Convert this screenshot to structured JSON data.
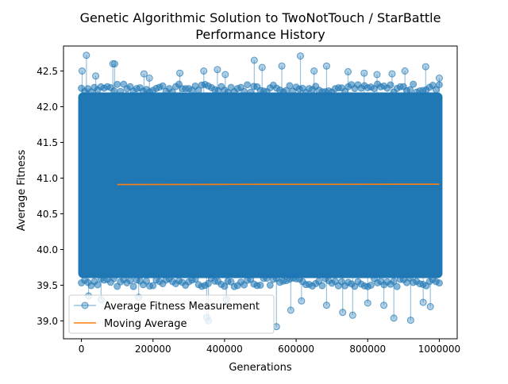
{
  "chart_data": {
    "type": "scatter",
    "title": [
      "Genetic Algorithmic Solution to TwoNotTouch / StarBattle",
      "Performance History"
    ],
    "xlabel": "Generations",
    "ylabel": "Average Fitness",
    "xlim": [
      -50000,
      1050000
    ],
    "ylim": [
      38.75,
      42.85
    ],
    "x_ticks": [
      0,
      200000,
      400000,
      600000,
      800000,
      1000000
    ],
    "x_tick_labels": [
      "0",
      "200000",
      "400000",
      "600000",
      "800000",
      "1000000"
    ],
    "y_ticks": [
      39.0,
      39.5,
      40.0,
      40.5,
      41.0,
      41.5,
      42.0,
      42.5
    ],
    "y_tick_labels": [
      "39.0",
      "39.5",
      "40.0",
      "40.5",
      "41.0",
      "41.5",
      "42.0",
      "42.5"
    ],
    "grid": false,
    "legend_position": "lower-left",
    "series": [
      {
        "name": "Average Fitness Measurement",
        "style": "line-with-circle-markers",
        "color": "#1f77b4",
        "x_range": [
          0,
          1000000
        ],
        "dense_band": [
          39.6,
          42.2
        ],
        "outliers": [
          {
            "x": 2000,
            "y": 42.5
          },
          {
            "x": 14000,
            "y": 42.72
          },
          {
            "x": 40000,
            "y": 42.43
          },
          {
            "x": 88000,
            "y": 42.6
          },
          {
            "x": 93000,
            "y": 42.6
          },
          {
            "x": 175000,
            "y": 42.46
          },
          {
            "x": 190000,
            "y": 42.4
          },
          {
            "x": 275000,
            "y": 42.47
          },
          {
            "x": 342000,
            "y": 42.5
          },
          {
            "x": 380000,
            "y": 42.52
          },
          {
            "x": 402000,
            "y": 42.45
          },
          {
            "x": 483000,
            "y": 42.65
          },
          {
            "x": 505000,
            "y": 42.55
          },
          {
            "x": 560000,
            "y": 42.57
          },
          {
            "x": 612000,
            "y": 42.71
          },
          {
            "x": 650000,
            "y": 42.5
          },
          {
            "x": 685000,
            "y": 42.57
          },
          {
            "x": 745000,
            "y": 42.49
          },
          {
            "x": 790000,
            "y": 42.47
          },
          {
            "x": 826000,
            "y": 42.45
          },
          {
            "x": 868000,
            "y": 42.46
          },
          {
            "x": 904000,
            "y": 42.5
          },
          {
            "x": 962000,
            "y": 42.56
          },
          {
            "x": 1000000,
            "y": 42.4
          },
          {
            "x": 20000,
            "y": 39.35
          },
          {
            "x": 55000,
            "y": 39.3
          },
          {
            "x": 160000,
            "y": 39.33
          },
          {
            "x": 350000,
            "y": 39.05
          },
          {
            "x": 355000,
            "y": 39.0
          },
          {
            "x": 405000,
            "y": 39.3
          },
          {
            "x": 545000,
            "y": 38.92
          },
          {
            "x": 585000,
            "y": 39.15
          },
          {
            "x": 615000,
            "y": 39.28
          },
          {
            "x": 685000,
            "y": 39.22
          },
          {
            "x": 730000,
            "y": 39.12
          },
          {
            "x": 758000,
            "y": 39.08
          },
          {
            "x": 800000,
            "y": 39.25
          },
          {
            "x": 845000,
            "y": 39.22
          },
          {
            "x": 873000,
            "y": 39.04
          },
          {
            "x": 920000,
            "y": 39.01
          },
          {
            "x": 955000,
            "y": 39.26
          },
          {
            "x": 975000,
            "y": 39.2
          }
        ]
      },
      {
        "name": "Moving Average",
        "style": "line",
        "color": "#ff7f0e",
        "x": [
          100000,
          300000,
          500000,
          700000,
          900000,
          1000000
        ],
        "values": [
          40.91,
          40.912,
          40.913,
          40.913,
          40.915,
          40.915
        ]
      }
    ]
  }
}
